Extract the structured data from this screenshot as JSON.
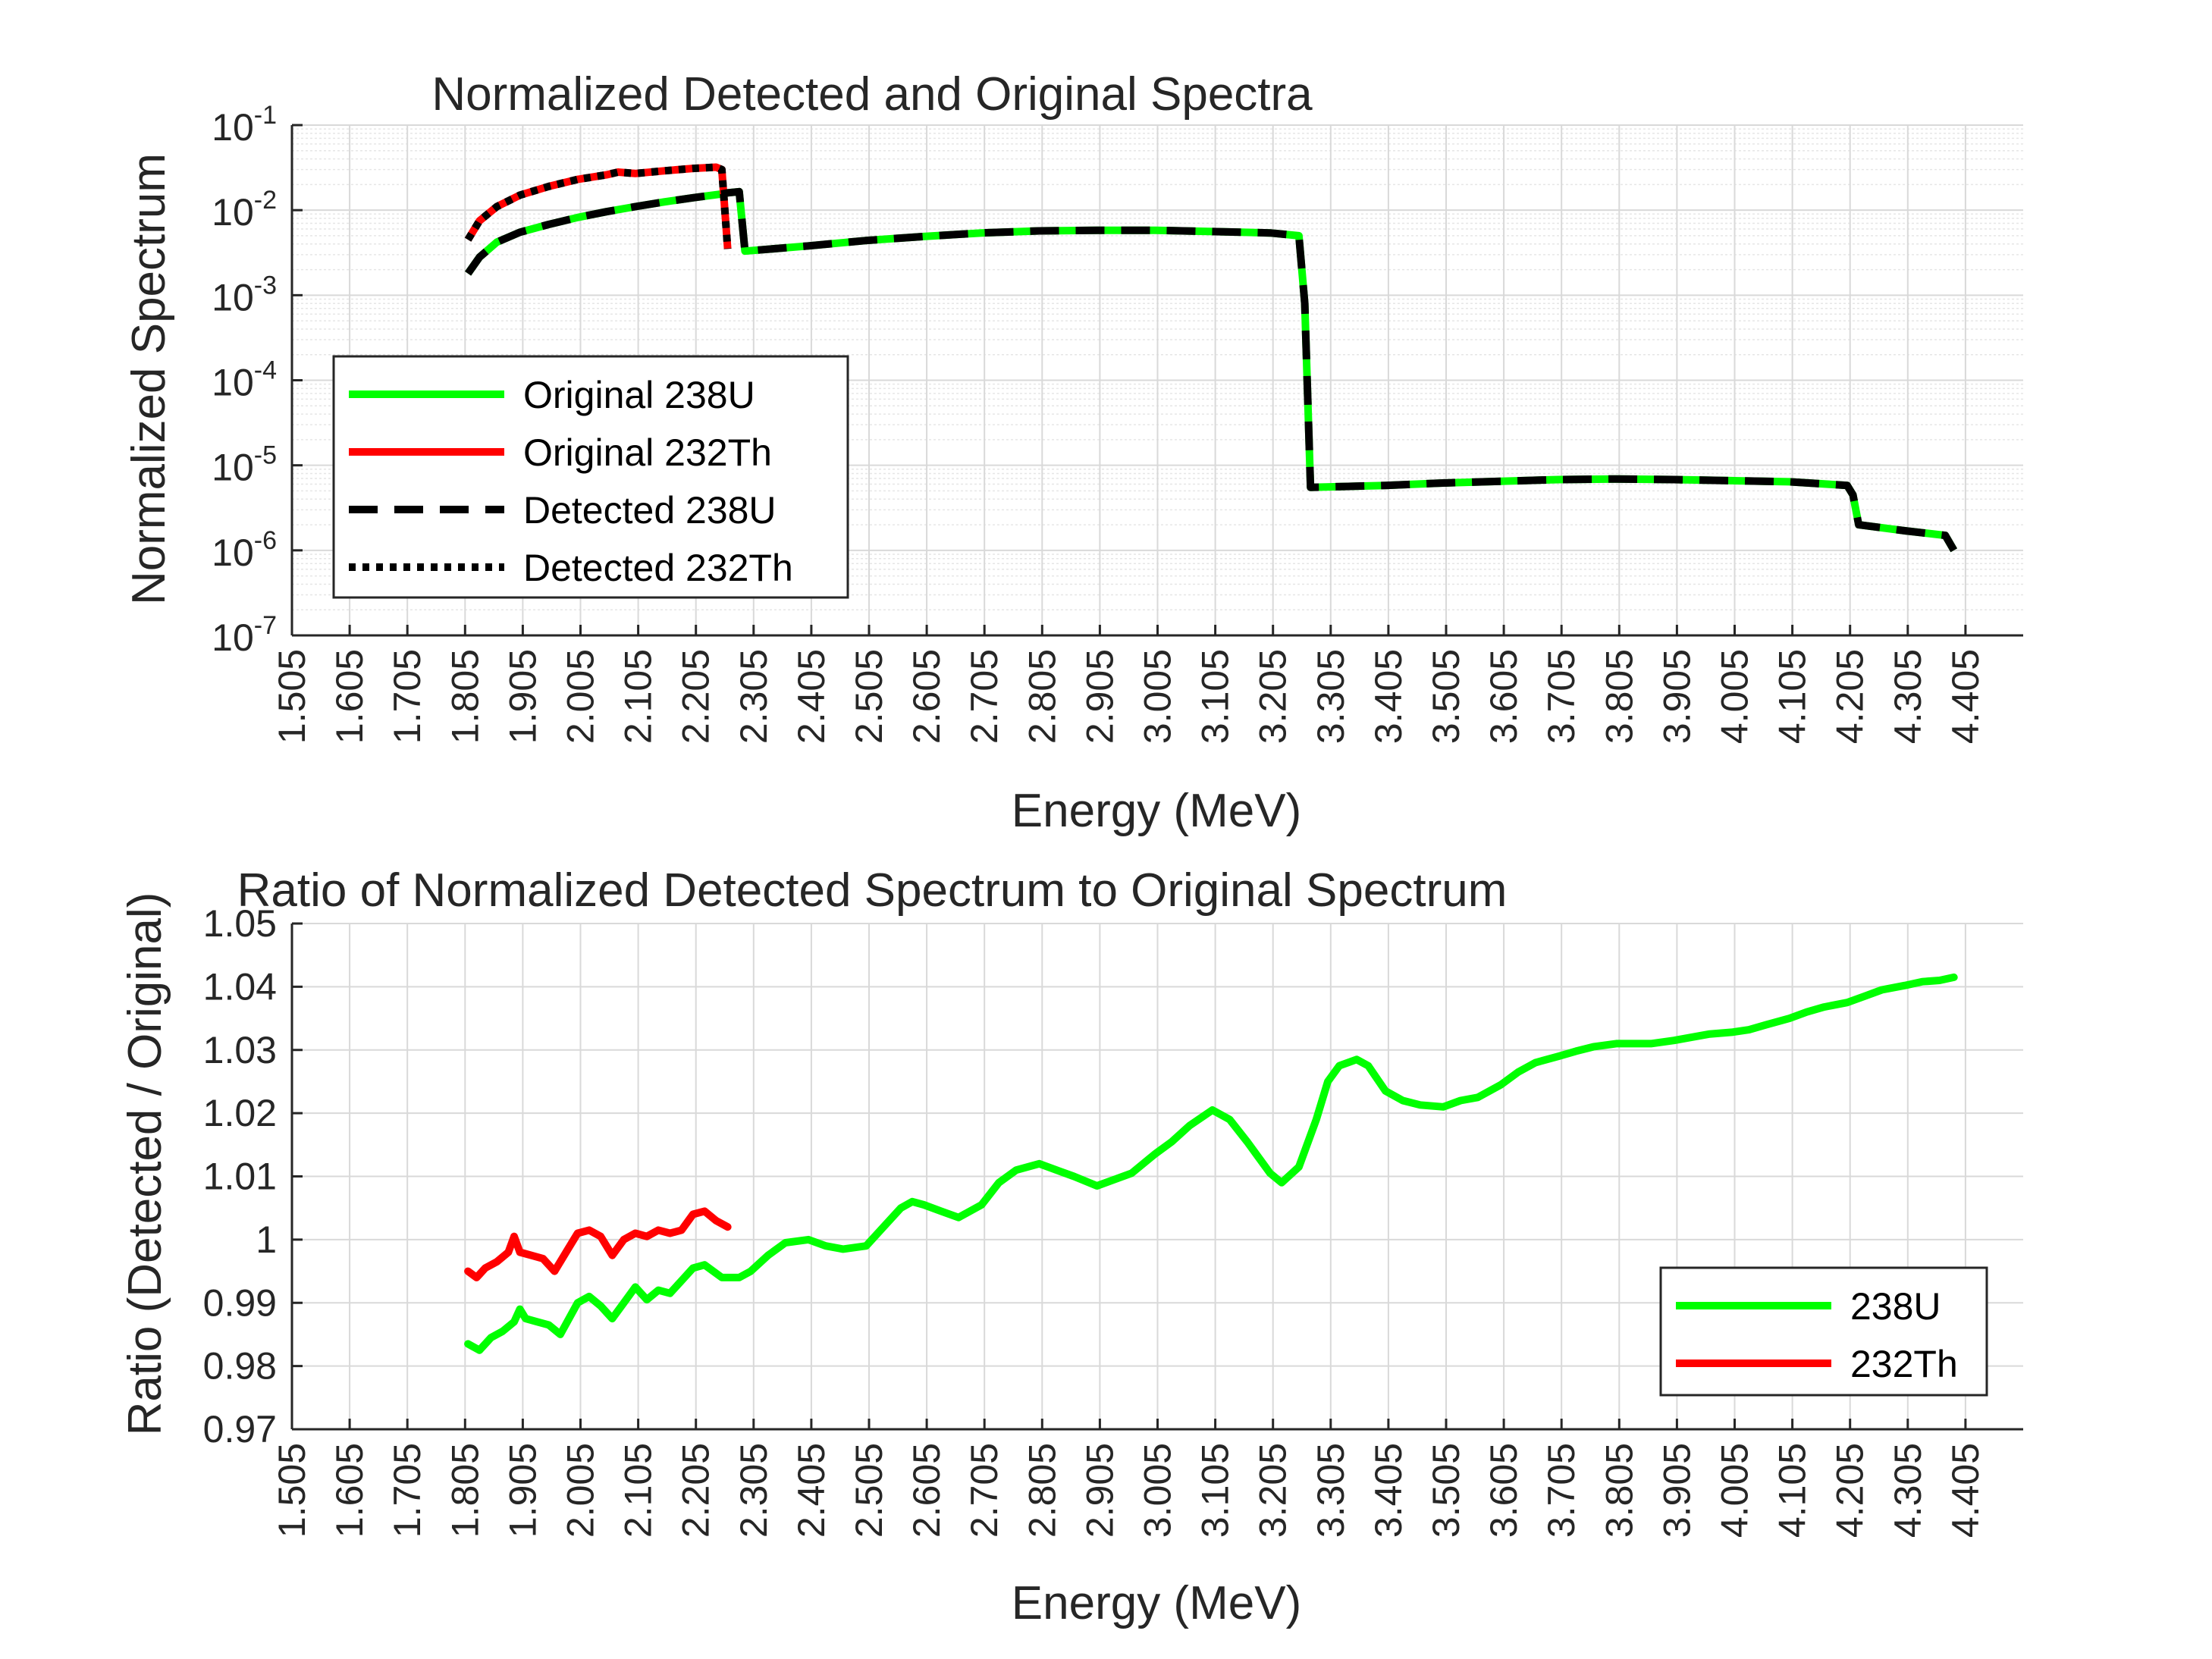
{
  "colors": {
    "u238": "#00ff00",
    "th232": "#ff0000",
    "detected": "#000000",
    "grid": "#d9d9d9",
    "axis": "#262626"
  },
  "chart_data": [
    {
      "type": "line",
      "title": "Normalized Detected and Original Spectra",
      "xlabel": "Energy (MeV)",
      "ylabel": "Normalized Spectrum",
      "yscale": "log",
      "xlim": [
        1.505,
        4.505
      ],
      "ylim": [
        1e-07,
        0.1
      ],
      "grid": true,
      "minor_grid": true,
      "legend_position": "lower-left",
      "xticks": [
        "1.505",
        "1.605",
        "1.705",
        "1.805",
        "1.905",
        "2.005",
        "2.105",
        "2.205",
        "2.305",
        "2.405",
        "2.505",
        "2.605",
        "2.705",
        "2.805",
        "2.905",
        "3.005",
        "3.105",
        "3.205",
        "3.305",
        "3.405",
        "3.505",
        "3.605",
        "3.705",
        "3.805",
        "3.905",
        "4.005",
        "4.105",
        "4.205",
        "4.305",
        "4.405"
      ],
      "yticks": [
        {
          "base": "10",
          "exp": "-7",
          "value": 1e-07
        },
        {
          "base": "10",
          "exp": "-6",
          "value": 1e-06
        },
        {
          "base": "10",
          "exp": "-5",
          "value": 1e-05
        },
        {
          "base": "10",
          "exp": "-4",
          "value": 0.0001
        },
        {
          "base": "10",
          "exp": "-3",
          "value": 0.001
        },
        {
          "base": "10",
          "exp": "-2",
          "value": 0.01
        },
        {
          "base": "10",
          "exp": "-1",
          "value": 0.1
        }
      ],
      "series": [
        {
          "name": "Original 238U",
          "style": "solid",
          "color": "#00ff00",
          "x": [
            1.81,
            1.83,
            1.86,
            1.9,
            1.95,
            2.0,
            2.05,
            2.1,
            2.15,
            2.2,
            2.25,
            2.26,
            2.28,
            2.29,
            2.4,
            2.5,
            2.6,
            2.7,
            2.8,
            2.9,
            3.0,
            3.1,
            3.2,
            3.25,
            3.26,
            3.27,
            3.4,
            3.5,
            3.6,
            3.7,
            3.8,
            3.9,
            4.0,
            4.1,
            4.2,
            4.21,
            4.22,
            4.3,
            4.37,
            4.385
          ],
          "y": [
            0.0018,
            0.0028,
            0.0042,
            0.0055,
            0.0068,
            0.0082,
            0.0096,
            0.011,
            0.0125,
            0.014,
            0.0155,
            0.016,
            0.0165,
            0.0033,
            0.0038,
            0.0044,
            0.0049,
            0.0054,
            0.0057,
            0.0058,
            0.0058,
            0.0056,
            0.0054,
            0.005,
            0.0008,
            5.5e-06,
            5.8e-06,
            6.2e-06,
            6.5e-06,
            6.8e-06,
            6.9e-06,
            6.8e-06,
            6.6e-06,
            6.4e-06,
            5.8e-06,
            4.5e-06,
            2e-06,
            1.7e-06,
            1.5e-06,
            1e-06
          ]
        },
        {
          "name": "Original 232Th",
          "style": "solid",
          "color": "#ff0000",
          "x": [
            1.81,
            1.83,
            1.86,
            1.9,
            1.95,
            2.0,
            2.05,
            2.07,
            2.1,
            2.15,
            2.2,
            2.24,
            2.25,
            2.26
          ],
          "y": [
            0.0045,
            0.0075,
            0.011,
            0.015,
            0.019,
            0.023,
            0.026,
            0.028,
            0.027,
            0.029,
            0.031,
            0.032,
            0.03,
            0.0035
          ]
        },
        {
          "name": "Detected 238U",
          "style": "dashed",
          "color": "#000000",
          "x": [
            1.81,
            1.83,
            1.86,
            1.9,
            1.95,
            2.0,
            2.05,
            2.1,
            2.15,
            2.2,
            2.25,
            2.26,
            2.28,
            2.29,
            2.4,
            2.5,
            2.6,
            2.7,
            2.8,
            2.9,
            3.0,
            3.1,
            3.2,
            3.25,
            3.26,
            3.27,
            3.4,
            3.5,
            3.6,
            3.7,
            3.8,
            3.9,
            4.0,
            4.1,
            4.2,
            4.21,
            4.22,
            4.3,
            4.37,
            4.385
          ],
          "y": [
            0.0018,
            0.0028,
            0.0042,
            0.0055,
            0.0068,
            0.0082,
            0.0096,
            0.011,
            0.0125,
            0.014,
            0.0155,
            0.016,
            0.0165,
            0.0033,
            0.0038,
            0.0044,
            0.0049,
            0.0054,
            0.0057,
            0.0058,
            0.0058,
            0.0056,
            0.0054,
            0.005,
            0.0008,
            5.5e-06,
            5.8e-06,
            6.2e-06,
            6.5e-06,
            6.8e-06,
            6.9e-06,
            6.8e-06,
            6.6e-06,
            6.4e-06,
            5.8e-06,
            4.5e-06,
            2e-06,
            1.7e-06,
            1.5e-06,
            1e-06
          ]
        },
        {
          "name": "Detected 232Th",
          "style": "dotted",
          "color": "#000000",
          "x": [
            1.81,
            1.83,
            1.86,
            1.9,
            1.95,
            2.0,
            2.05,
            2.07,
            2.1,
            2.15,
            2.2,
            2.24,
            2.25,
            2.26
          ],
          "y": [
            0.0045,
            0.0075,
            0.011,
            0.015,
            0.019,
            0.023,
            0.026,
            0.028,
            0.027,
            0.029,
            0.031,
            0.032,
            0.03,
            0.0035
          ]
        }
      ]
    },
    {
      "type": "line",
      "title": "Ratio of Normalized Detected Spectrum to Original Spectrum",
      "xlabel": "Energy (MeV)",
      "ylabel": "Ratio (Detected / Original)",
      "yscale": "linear",
      "xlim": [
        1.505,
        4.505
      ],
      "ylim": [
        0.97,
        1.05
      ],
      "grid": true,
      "legend_position": "lower-right",
      "xticks": [
        "1.505",
        "1.605",
        "1.705",
        "1.805",
        "1.905",
        "2.005",
        "2.105",
        "2.205",
        "2.305",
        "2.405",
        "2.505",
        "2.605",
        "2.705",
        "2.805",
        "2.905",
        "3.005",
        "3.105",
        "3.205",
        "3.305",
        "3.405",
        "3.505",
        "3.605",
        "3.705",
        "3.805",
        "3.905",
        "4.005",
        "4.105",
        "4.205",
        "4.305",
        "4.405"
      ],
      "yticks": [
        "0.97",
        "0.98",
        "0.99",
        "1",
        "1.01",
        "1.02",
        "1.03",
        "1.04",
        "1.05"
      ],
      "series": [
        {
          "name": "238U",
          "color": "#00ff00",
          "x": [
            1.81,
            1.83,
            1.85,
            1.87,
            1.89,
            1.9,
            1.91,
            1.93,
            1.95,
            1.97,
            2.0,
            2.02,
            2.04,
            2.06,
            2.08,
            2.1,
            2.12,
            2.14,
            2.16,
            2.18,
            2.2,
            2.22,
            2.25,
            2.28,
            2.3,
            2.33,
            2.36,
            2.4,
            2.43,
            2.46,
            2.5,
            2.53,
            2.56,
            2.58,
            2.6,
            2.63,
            2.66,
            2.7,
            2.73,
            2.76,
            2.8,
            2.83,
            2.86,
            2.9,
            2.93,
            2.96,
            3.0,
            3.03,
            3.06,
            3.1,
            3.13,
            3.16,
            3.2,
            3.22,
            3.25,
            3.28,
            3.3,
            3.32,
            3.35,
            3.37,
            3.4,
            3.43,
            3.46,
            3.5,
            3.53,
            3.56,
            3.6,
            3.63,
            3.66,
            3.7,
            3.73,
            3.76,
            3.8,
            3.83,
            3.86,
            3.9,
            3.93,
            3.96,
            4.0,
            4.03,
            4.06,
            4.1,
            4.13,
            4.16,
            4.2,
            4.23,
            4.26,
            4.3,
            4.33,
            4.36,
            4.385
          ],
          "y": [
            0.9835,
            0.9825,
            0.9845,
            0.9855,
            0.987,
            0.989,
            0.9875,
            0.987,
            0.9865,
            0.985,
            0.99,
            0.991,
            0.9895,
            0.9875,
            0.99,
            0.9925,
            0.9905,
            0.992,
            0.9915,
            0.9935,
            0.9955,
            0.996,
            0.994,
            0.994,
            0.995,
            0.9975,
            0.9995,
            1.0,
            0.999,
            0.9985,
            0.999,
            1.002,
            1.005,
            1.006,
            1.0055,
            1.0045,
            1.0035,
            1.0055,
            1.009,
            1.011,
            1.012,
            1.011,
            1.01,
            1.0085,
            1.0095,
            1.0105,
            1.0135,
            1.0155,
            1.018,
            1.0205,
            1.019,
            1.0155,
            1.0105,
            1.009,
            1.0115,
            1.019,
            1.025,
            1.0275,
            1.0285,
            1.0275,
            1.0235,
            1.022,
            1.0213,
            1.021,
            1.022,
            1.0225,
            1.0245,
            1.0265,
            1.028,
            1.029,
            1.0298,
            1.0305,
            1.031,
            1.031,
            1.031,
            1.0315,
            1.032,
            1.0325,
            1.0328,
            1.0332,
            1.034,
            1.035,
            1.036,
            1.0368,
            1.0375,
            1.0385,
            1.0395,
            1.0402,
            1.0408,
            1.041,
            1.0415
          ]
        },
        {
          "name": "232Th",
          "color": "#ff0000",
          "x": [
            1.81,
            1.825,
            1.84,
            1.86,
            1.88,
            1.89,
            1.9,
            1.92,
            1.94,
            1.96,
            1.98,
            2.0,
            2.02,
            2.04,
            2.06,
            2.08,
            2.1,
            2.12,
            2.14,
            2.16,
            2.18,
            2.2,
            2.22,
            2.24,
            2.26
          ],
          "y": [
            0.995,
            0.994,
            0.9955,
            0.9965,
            0.998,
            1.0005,
            0.998,
            0.9975,
            0.997,
            0.995,
            0.998,
            1.001,
            1.0015,
            1.0005,
            0.9975,
            1.0,
            1.001,
            1.0005,
            1.0015,
            1.001,
            1.0015,
            1.004,
            1.0045,
            1.003,
            1.002
          ]
        }
      ]
    }
  ]
}
